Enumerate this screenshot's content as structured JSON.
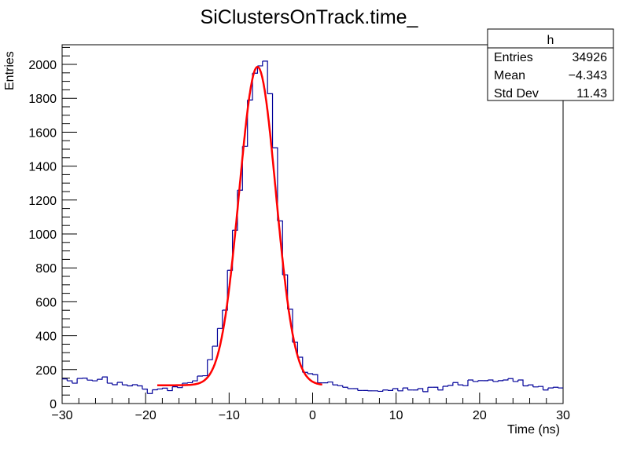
{
  "chart_data": {
    "type": "histogram",
    "title": "SiClustersOnTrack.time_",
    "xlabel": "Time (ns)",
    "ylabel": "Entries",
    "xlim": [
      -30,
      30
    ],
    "ylim": [
      0,
      2100
    ],
    "x_ticks": [
      -30,
      -20,
      -10,
      0,
      10,
      20,
      30
    ],
    "y_ticks": [
      0,
      200,
      400,
      600,
      800,
      1000,
      1200,
      1400,
      1600,
      1800,
      2000
    ],
    "bin_width": 0.6,
    "grid": false,
    "colors": {
      "histogram": "#000099",
      "fit": "#ff0000"
    },
    "bin_contents": [
      145,
      134,
      120,
      148,
      150,
      138,
      134,
      143,
      157,
      120,
      111,
      125,
      110,
      104,
      111,
      104,
      85,
      59,
      81,
      86,
      91,
      76,
      99,
      94,
      120,
      123,
      134,
      162,
      164,
      259,
      338,
      443,
      551,
      786,
      1022,
      1258,
      1517,
      1790,
      1948,
      1991,
      2019,
      1827,
      1508,
      1077,
      759,
      556,
      361,
      273,
      184,
      176,
      170,
      122,
      122,
      127,
      110,
      105,
      96,
      88,
      88,
      77,
      77,
      75,
      75,
      72,
      80,
      77,
      88,
      75,
      92,
      80,
      80,
      88,
      70,
      96,
      96,
      80,
      102,
      107,
      124,
      110,
      105,
      139,
      130,
      135,
      135,
      139,
      130,
      135,
      139,
      147,
      130,
      139,
      104,
      110,
      98,
      101,
      80,
      92,
      96,
      92
    ],
    "fit": {
      "function": "gaussian + constant",
      "range": [
        -18.6,
        1.2
      ],
      "constant": 108,
      "amplitude": 1877,
      "mean": -6.6,
      "sigma": 2.2
    },
    "stats_box": {
      "title": "h",
      "rows": [
        {
          "label": "Entries",
          "value": "34926"
        },
        {
          "label": "Mean",
          "value": "−4.343"
        },
        {
          "label": "Std Dev",
          "value": "11.43"
        }
      ]
    }
  }
}
